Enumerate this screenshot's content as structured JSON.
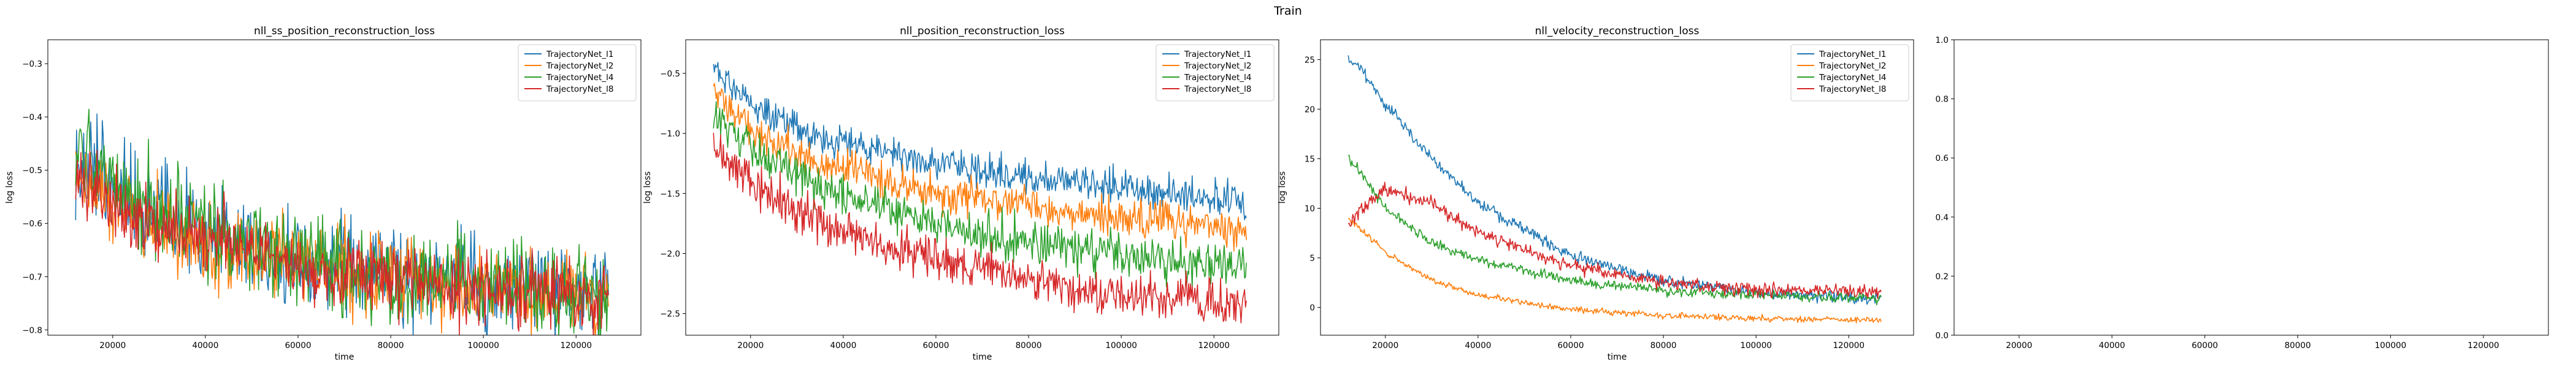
{
  "figure": {
    "suptitle": "Train"
  },
  "chart_data": [
    {
      "type": "line",
      "title": "nll_ss_position_reconstruction_loss",
      "xlabel": "time",
      "ylabel": "log loss",
      "xlim": [
        6000,
        134000
      ],
      "ylim": [
        -0.81,
        -0.255
      ],
      "xticks": [
        20000,
        40000,
        60000,
        80000,
        100000,
        120000
      ],
      "yticks": [
        -0.8,
        -0.7,
        -0.6,
        -0.5,
        -0.4,
        -0.3
      ],
      "grid": false,
      "legend": "top-right",
      "x": [
        12000,
        16000,
        20000,
        30000,
        40000,
        60000,
        80000,
        100000,
        127000
      ],
      "series": [
        {
          "name": "TrajectoryNet_l1",
          "color": "#1f77b4",
          "values": [
            -0.5,
            -0.48,
            -0.52,
            -0.58,
            -0.62,
            -0.67,
            -0.69,
            -0.71,
            -0.73
          ],
          "noise": 0.045
        },
        {
          "name": "TrajectoryNet_l2",
          "color": "#ff7f0e",
          "values": [
            -0.53,
            -0.54,
            -0.57,
            -0.61,
            -0.64,
            -0.68,
            -0.7,
            -0.72,
            -0.74
          ],
          "noise": 0.04
        },
        {
          "name": "TrajectoryNet_l4",
          "color": "#2ca02c",
          "values": [
            -0.47,
            -0.5,
            -0.53,
            -0.58,
            -0.62,
            -0.67,
            -0.7,
            -0.71,
            -0.74
          ],
          "noise": 0.045
        },
        {
          "name": "TrajectoryNet_l8",
          "color": "#d62728",
          "values": [
            -0.52,
            -0.53,
            -0.56,
            -0.6,
            -0.63,
            -0.68,
            -0.7,
            -0.72,
            -0.74
          ],
          "noise": 0.035
        }
      ]
    },
    {
      "type": "line",
      "title": "nll_position_reconstruction_loss",
      "xlabel": "time",
      "ylabel": "log loss",
      "xlim": [
        6000,
        134000
      ],
      "ylim": [
        -2.68,
        -0.22
      ],
      "xticks": [
        20000,
        40000,
        60000,
        80000,
        100000,
        120000
      ],
      "yticks": [
        -2.5,
        -2.0,
        -1.5,
        -1.0,
        -0.5
      ],
      "grid": false,
      "legend": "top-right",
      "x": [
        12000,
        16000,
        20000,
        30000,
        40000,
        60000,
        80000,
        100000,
        127000
      ],
      "series": [
        {
          "name": "TrajectoryNet_l1",
          "color": "#1f77b4",
          "values": [
            -0.45,
            -0.62,
            -0.75,
            -0.95,
            -1.08,
            -1.25,
            -1.36,
            -1.45,
            -1.55
          ],
          "noise": 0.07
        },
        {
          "name": "TrajectoryNet_l2",
          "color": "#ff7f0e",
          "values": [
            -0.65,
            -0.82,
            -0.95,
            -1.17,
            -1.3,
            -1.5,
            -1.62,
            -1.7,
            -1.78
          ],
          "noise": 0.08
        },
        {
          "name": "TrajectoryNet_l4",
          "color": "#2ca02c",
          "values": [
            -0.8,
            -1.0,
            -1.12,
            -1.35,
            -1.52,
            -1.75,
            -1.9,
            -2.02,
            -2.12
          ],
          "noise": 0.09
        },
        {
          "name": "TrajectoryNet_l8",
          "color": "#d62728",
          "values": [
            -1.1,
            -1.3,
            -1.42,
            -1.65,
            -1.82,
            -2.05,
            -2.22,
            -2.33,
            -2.42
          ],
          "noise": 0.09
        }
      ]
    },
    {
      "type": "line",
      "title": "nll_velocity_reconstruction_loss",
      "xlabel": "time",
      "ylabel": "log loss",
      "xlim": [
        6000,
        134000
      ],
      "ylim": [
        -2.8,
        27
      ],
      "xticks": [
        20000,
        40000,
        60000,
        80000,
        100000,
        120000
      ],
      "yticks": [
        0,
        5,
        10,
        15,
        20,
        25
      ],
      "grid": false,
      "legend": "top-right",
      "x": [
        12000,
        15000,
        20000,
        30000,
        40000,
        60000,
        80000,
        100000,
        127000
      ],
      "series": [
        {
          "name": "TrajectoryNet_l1",
          "color": "#1f77b4",
          "values": [
            25,
            24,
            20.5,
            15,
            10.5,
            5.2,
            2.7,
            1.5,
            0.8
          ],
          "noise": 0.3
        },
        {
          "name": "TrajectoryNet_l2",
          "color": "#ff7f0e",
          "values": [
            9,
            7.8,
            5.5,
            2.8,
            1.2,
            -0.2,
            -0.8,
            -1.1,
            -1.3
          ],
          "noise": 0.15
        },
        {
          "name": "TrajectoryNet_l4",
          "color": "#2ca02c",
          "values": [
            15,
            13.5,
            10,
            6.5,
            4.8,
            2.7,
            1.7,
            1.2,
            0.9
          ],
          "noise": 0.25
        },
        {
          "name": "TrajectoryNet_l8",
          "color": "#d62728",
          "values": [
            8,
            10,
            12,
            10.5,
            7.5,
            4.2,
            2.5,
            1.8,
            1.6
          ],
          "noise": 0.35
        }
      ]
    },
    {
      "type": "line",
      "title": "",
      "xlabel": "",
      "ylabel": "",
      "xlim": [
        6000,
        134000
      ],
      "ylim": [
        0,
        1
      ],
      "xticks": [
        20000,
        40000,
        60000,
        80000,
        100000,
        120000
      ],
      "yticks": [
        0.0,
        0.2,
        0.4,
        0.6,
        0.8,
        1.0
      ],
      "grid": false,
      "legend": "none",
      "x": [],
      "series": []
    }
  ]
}
